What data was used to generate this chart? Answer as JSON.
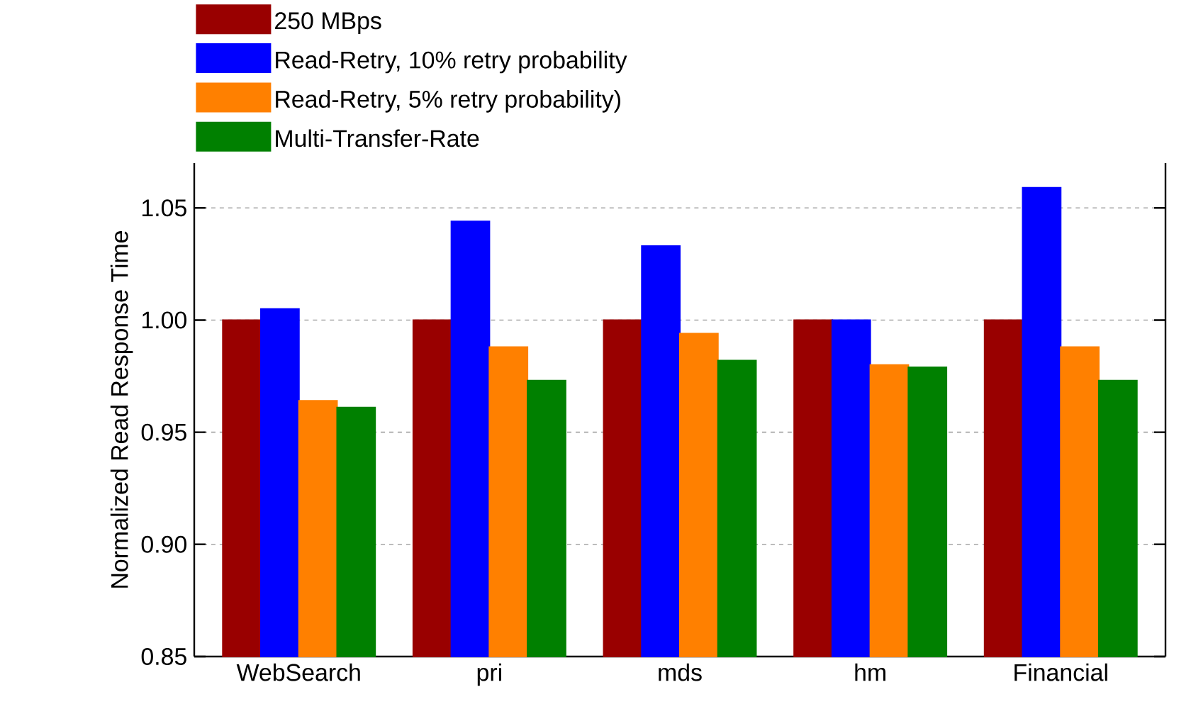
{
  "chart_data": {
    "type": "bar",
    "ylabel": "Normalized Read Response Time",
    "categories": [
      "WebSearch",
      "pri",
      "mds",
      "hm",
      "Financial"
    ],
    "series": [
      {
        "name": "250 MBps",
        "color": "#990000",
        "values": [
          1.0,
          1.0,
          1.0,
          1.0,
          1.0
        ]
      },
      {
        "name": "Read-Retry, 10% retry probability",
        "color": "#0000ff",
        "values": [
          1.005,
          1.044,
          1.033,
          1.0,
          1.059
        ]
      },
      {
        "name": "Read-Retry,  5% retry probability)",
        "color": "#ff8000",
        "values": [
          0.964,
          0.988,
          0.994,
          0.98,
          0.988
        ]
      },
      {
        "name": "Multi-Transfer-Rate",
        "color": "#008000",
        "values": [
          0.961,
          0.973,
          0.982,
          0.979,
          0.973
        ]
      }
    ],
    "ylim": [
      0.85,
      1.07
    ],
    "yticks": [
      {
        "value": 0.85,
        "label": "0.85"
      },
      {
        "value": 0.9,
        "label": "0.90"
      },
      {
        "value": 0.95,
        "label": "0.95"
      },
      {
        "value": 1.0,
        "label": "1.00"
      },
      {
        "value": 1.05,
        "label": "1.05"
      }
    ],
    "grid": "y",
    "legend": "top left"
  }
}
